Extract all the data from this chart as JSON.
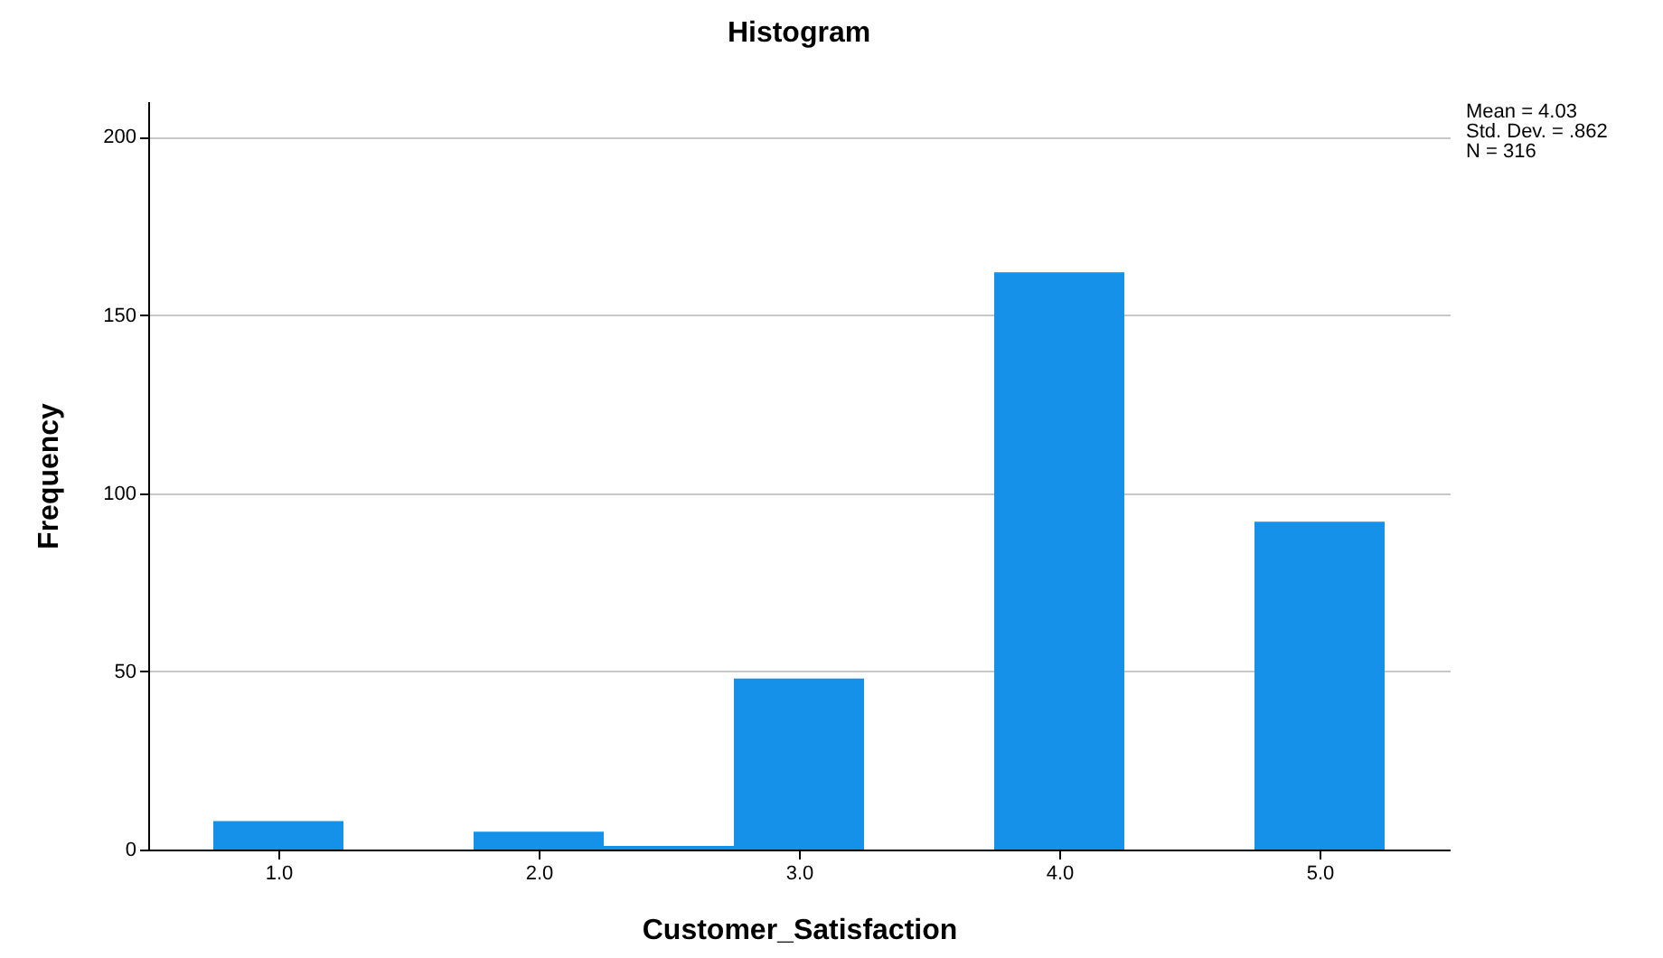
{
  "chart_data": {
    "type": "histogram",
    "title": "Histogram",
    "xlabel": "Customer_Satisfaction",
    "ylabel": "Frequency",
    "bins": [
      0.75,
      1.25,
      1.75,
      2.25,
      2.75,
      3.25,
      3.75,
      4.25,
      4.75,
      5.25
    ],
    "values": [
      8,
      0,
      5,
      1,
      48,
      0,
      162,
      0,
      92
    ],
    "color": "#1591ea",
    "xlim": [
      0.5,
      5.5
    ],
    "xticks": [
      {
        "value": 1,
        "label": "1.0"
      },
      {
        "value": 2,
        "label": "2.0"
      },
      {
        "value": 3,
        "label": "3.0"
      },
      {
        "value": 4,
        "label": "4.0"
      },
      {
        "value": 5,
        "label": "5.0"
      }
    ],
    "ylim": [
      0,
      210
    ],
    "yticks": [
      0,
      50,
      100,
      150,
      200
    ],
    "grid": "y",
    "annotations": [
      "Mean = 4.03",
      "Std. Dev. = .862",
      "N = 316"
    ]
  }
}
